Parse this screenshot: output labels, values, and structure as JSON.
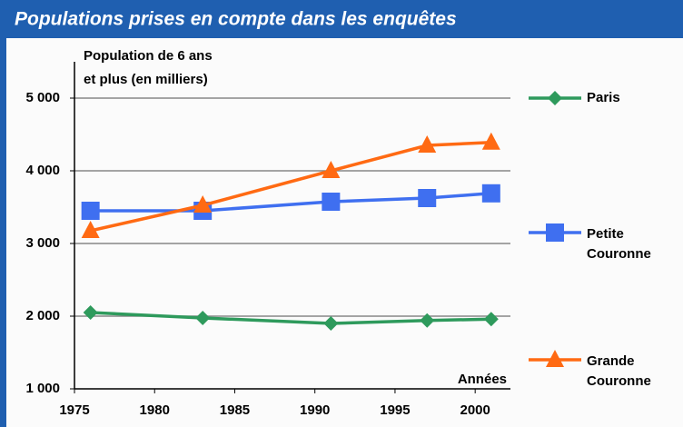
{
  "chart_data": {
    "type": "line",
    "title": "Populations prises en compte dans les enquêtes",
    "y_label": [
      "Population de 6 ans",
      "et plus (en milliers)"
    ],
    "x_label": "Années",
    "x": [
      1976,
      1983,
      1991,
      1997,
      2001
    ],
    "series": [
      {
        "name": "Paris",
        "color": "#2e9a5c",
        "marker": "diamond",
        "values": [
          2050,
          1975,
          1900,
          1940,
          1960
        ]
      },
      {
        "name": [
          "Petite",
          "Couronne"
        ],
        "color": "#3f6ff0",
        "marker": "square",
        "values": [
          3450,
          3450,
          3575,
          3625,
          3690
        ]
      },
      {
        "name": [
          "Grande",
          "Couronne"
        ],
        "color": "#ff6a13",
        "marker": "triangle",
        "values": [
          3175,
          3525,
          4000,
          4350,
          4390
        ]
      }
    ],
    "xlim": [
      1975,
      2002.2
    ],
    "xticks": [
      1975,
      1980,
      1985,
      1990,
      1995,
      2000
    ],
    "ylim": [
      1000,
      5500
    ],
    "yticks": [
      {
        "value": 1000,
        "label": "1 000"
      },
      {
        "value": 2000,
        "label": "2 000"
      },
      {
        "value": 3000,
        "label": "3 000"
      },
      {
        "value": 4000,
        "label": "4 000"
      },
      {
        "value": 5000,
        "label": "5 000"
      }
    ],
    "grid": true,
    "legend": "right"
  }
}
